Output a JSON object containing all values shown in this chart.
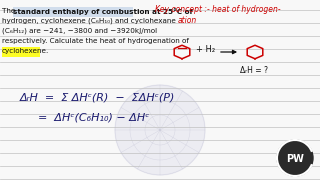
{
  "bg_color": "#f8f8f8",
  "line_color": "#c0c0c0",
  "text_color": "#111111",
  "red_color": "#cc0000",
  "dark_blue": "#1a1a6e",
  "yellow_highlight": "#ffff00",
  "left_text_lines": [
    "The standard enthalpy of combustion at 25°C of",
    "hydrogen, cyclohexene (C₆H₁₀) and cyclohexane",
    "(C₆H₁₂) are −241, −3800 and −3920kJ/mol",
    "respectively. Calculate the heat of hydrogenation of",
    "cyclohexene."
  ],
  "watermark_text": "PW",
  "globe_color": "#d8d8e8",
  "pw_bg": "#2a2a2a",
  "pw_ring": "#ffffff"
}
